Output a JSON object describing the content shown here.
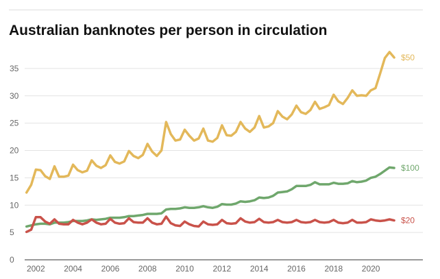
{
  "chart_data": {
    "type": "line",
    "title": "Australian banknotes per person in circulation",
    "xlabel": "",
    "ylabel": "",
    "x": [
      2001.5,
      2001.75,
      2002.0,
      2002.25,
      2002.5,
      2002.75,
      2003.0,
      2003.25,
      2003.5,
      2003.75,
      2004.0,
      2004.25,
      2004.5,
      2004.75,
      2005.0,
      2005.25,
      2005.5,
      2005.75,
      2006.0,
      2006.25,
      2006.5,
      2006.75,
      2007.0,
      2007.25,
      2007.5,
      2007.75,
      2008.0,
      2008.25,
      2008.5,
      2008.75,
      2009.0,
      2009.25,
      2009.5,
      2009.75,
      2010.0,
      2010.25,
      2010.5,
      2010.75,
      2011.0,
      2011.25,
      2011.5,
      2011.75,
      2012.0,
      2012.25,
      2012.5,
      2012.75,
      2013.0,
      2013.25,
      2013.5,
      2013.75,
      2014.0,
      2014.25,
      2014.5,
      2014.75,
      2015.0,
      2015.25,
      2015.5,
      2015.75,
      2016.0,
      2016.25,
      2016.5,
      2016.75,
      2017.0,
      2017.25,
      2017.5,
      2017.75,
      2018.0,
      2018.25,
      2018.5,
      2018.75,
      2019.0,
      2019.25,
      2019.5,
      2019.75,
      2020.0,
      2020.25,
      2020.5,
      2020.75,
      2021.0,
      2021.25
    ],
    "series": [
      {
        "name": "$50",
        "color": "#e3b85a",
        "values": [
          12.3,
          13.7,
          16.5,
          16.4,
          15.3,
          14.8,
          17.1,
          15.2,
          15.2,
          15.4,
          17.4,
          16.4,
          16.0,
          16.3,
          18.2,
          17.2,
          16.8,
          17.3,
          19.1,
          17.9,
          17.6,
          18.0,
          19.9,
          19.0,
          18.6,
          19.2,
          21.2,
          19.8,
          19.0,
          20.0,
          25.2,
          23.0,
          21.8,
          22.0,
          23.8,
          22.7,
          21.8,
          22.2,
          24.0,
          21.8,
          21.6,
          22.3,
          24.6,
          22.8,
          22.7,
          23.4,
          25.2,
          24.0,
          23.4,
          24.2,
          26.3,
          24.2,
          24.4,
          25.0,
          27.2,
          26.2,
          25.7,
          26.6,
          28.2,
          27.0,
          26.7,
          27.4,
          28.9,
          27.6,
          27.9,
          28.3,
          30.2,
          29.0,
          28.5,
          29.6,
          31.0,
          30.0,
          30.1,
          30.0,
          31.0,
          31.4,
          34.1,
          36.9,
          38.0,
          37.0
        ]
      },
      {
        "name": "$100",
        "color": "#6fa76c",
        "values": [
          6.1,
          6.3,
          6.5,
          6.6,
          6.6,
          6.5,
          6.8,
          6.8,
          6.8,
          6.9,
          7.1,
          7.1,
          7.1,
          7.2,
          7.4,
          7.3,
          7.4,
          7.5,
          7.7,
          7.7,
          7.7,
          7.8,
          8.0,
          8.0,
          8.1,
          8.2,
          8.4,
          8.4,
          8.4,
          8.5,
          9.2,
          9.3,
          9.3,
          9.4,
          9.6,
          9.5,
          9.5,
          9.6,
          9.8,
          9.6,
          9.5,
          9.7,
          10.2,
          10.1,
          10.1,
          10.3,
          10.7,
          10.6,
          10.7,
          10.9,
          11.4,
          11.3,
          11.4,
          11.7,
          12.3,
          12.4,
          12.5,
          12.9,
          13.5,
          13.5,
          13.5,
          13.7,
          14.2,
          13.8,
          13.8,
          13.8,
          14.1,
          13.9,
          13.9,
          14.0,
          14.4,
          14.2,
          14.3,
          14.5,
          15.0,
          15.2,
          15.7,
          16.3,
          16.9,
          16.8
        ]
      },
      {
        "name": "$20",
        "color": "#c9524a",
        "values": [
          5.1,
          5.5,
          7.8,
          7.8,
          7.0,
          6.6,
          7.4,
          6.6,
          6.5,
          6.5,
          7.3,
          6.8,
          6.5,
          6.8,
          7.4,
          6.8,
          6.5,
          6.6,
          7.5,
          6.8,
          6.6,
          6.7,
          7.6,
          6.9,
          6.8,
          6.8,
          7.6,
          6.8,
          6.5,
          6.6,
          7.9,
          6.7,
          6.3,
          6.2,
          7.0,
          6.5,
          6.2,
          6.1,
          7.0,
          6.5,
          6.4,
          6.5,
          7.3,
          6.7,
          6.6,
          6.7,
          7.6,
          7.0,
          6.8,
          6.9,
          7.5,
          6.9,
          6.8,
          6.9,
          7.3,
          6.9,
          6.8,
          6.9,
          7.3,
          6.9,
          6.8,
          6.9,
          7.3,
          6.9,
          6.8,
          6.9,
          7.3,
          6.8,
          6.7,
          6.8,
          7.3,
          6.8,
          6.8,
          6.9,
          7.4,
          7.2,
          7.1,
          7.2,
          7.4,
          7.2
        ]
      }
    ],
    "yticks": [
      0,
      5,
      10,
      15,
      20,
      25,
      30,
      35
    ],
    "xticks": [
      2002,
      2004,
      2006,
      2008,
      2010,
      2012,
      2014,
      2016,
      2018,
      2020
    ],
    "xlim": [
      2001.4,
      2021.8
    ],
    "ylim": [
      0,
      40
    ],
    "grid": true,
    "legend": "end-of-line labels"
  }
}
